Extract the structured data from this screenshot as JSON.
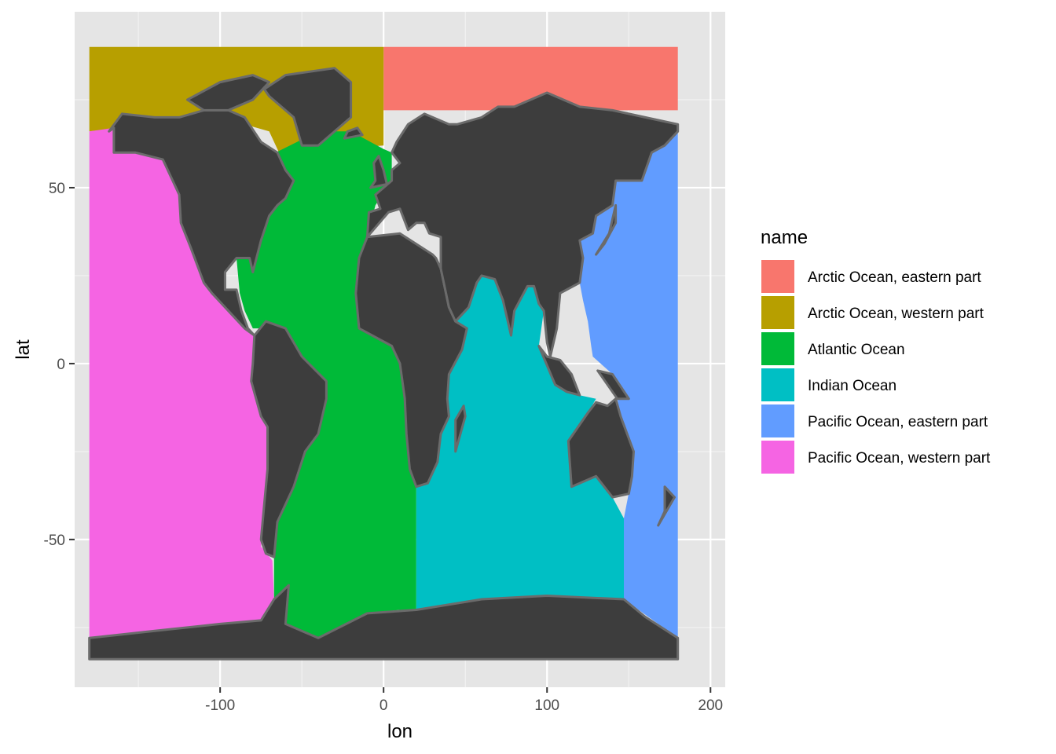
{
  "chart_data": {
    "type": "map",
    "title": "",
    "xlabel": "lon",
    "ylabel": "lat",
    "xlim": [
      -189,
      209
    ],
    "ylim": [
      -92,
      100
    ],
    "x_ticks": [
      -100,
      0,
      100,
      200
    ],
    "x_tick_labels": [
      "-100",
      "0",
      "100",
      "200"
    ],
    "y_ticks": [
      -50,
      0,
      50
    ],
    "y_tick_labels": [
      "-50",
      "0",
      "50"
    ],
    "x_minor_ticks": [
      -150,
      -50,
      50,
      150
    ],
    "y_minor_ticks": [
      -75,
      -25,
      25,
      75
    ],
    "grid": true,
    "panel_background": "#e5e5e5",
    "land_color": "#3d3d3d",
    "border_color": "#6b6b6b",
    "legend": {
      "title": "name",
      "position": "right",
      "entries": [
        {
          "label": "Arctic Ocean, eastern part",
          "color": "#f8766d"
        },
        {
          "label": "Arctic Ocean, western part",
          "color": "#b79f00"
        },
        {
          "label": "Atlantic Ocean",
          "color": "#00ba38"
        },
        {
          "label": "Indian Ocean",
          "color": "#00bfc4"
        },
        {
          "label": "Pacific Ocean, eastern part",
          "color": "#619cff"
        },
        {
          "label": "Pacific Ocean, western part",
          "color": "#f564e3"
        }
      ]
    },
    "regions": [
      {
        "name": "Arctic Ocean, eastern part",
        "color": "#f8766d",
        "polygon": [
          [
            0,
            90
          ],
          [
            180,
            90
          ],
          [
            180,
            72
          ],
          [
            0,
            72
          ]
        ]
      },
      {
        "name": "Arctic Ocean, western part",
        "color": "#b79f00",
        "polygon": [
          [
            -180,
            90
          ],
          [
            0,
            90
          ],
          [
            0,
            62
          ],
          [
            -30,
            61
          ],
          [
            -40,
            60
          ],
          [
            -64,
            60
          ],
          [
            -70,
            66
          ],
          [
            -100,
            70
          ],
          [
            -180,
            66
          ]
        ]
      },
      {
        "name": "Atlantic Ocean",
        "color": "#00ba38",
        "polygon": [
          [
            -66,
            60
          ],
          [
            -40,
            66
          ],
          [
            -20,
            66
          ],
          [
            0,
            61
          ],
          [
            5,
            60
          ],
          [
            5,
            52
          ],
          [
            -5,
            45
          ],
          [
            -10,
            36
          ],
          [
            -15,
            30
          ],
          [
            -17,
            20
          ],
          [
            -15,
            10
          ],
          [
            5,
            5
          ],
          [
            10,
            0
          ],
          [
            13,
            -10
          ],
          [
            14,
            -20
          ],
          [
            16,
            -30
          ],
          [
            20,
            -35
          ],
          [
            20,
            -70
          ],
          [
            10,
            -70
          ],
          [
            -10,
            -71
          ],
          [
            -40,
            -78
          ],
          [
            -60,
            -74
          ],
          [
            -67,
            -67
          ],
          [
            -67,
            -55
          ],
          [
            -65,
            -45
          ],
          [
            -55,
            -35
          ],
          [
            -48,
            -25
          ],
          [
            -40,
            -20
          ],
          [
            -35,
            -10
          ],
          [
            -35,
            -5
          ],
          [
            -50,
            0
          ],
          [
            -60,
            8
          ],
          [
            -70,
            10
          ],
          [
            -80,
            10
          ],
          [
            -85,
            15
          ],
          [
            -88,
            20
          ],
          [
            -90,
            30
          ],
          [
            -82,
            30
          ],
          [
            -80,
            26
          ],
          [
            -75,
            35
          ],
          [
            -70,
            42
          ],
          [
            -65,
            45
          ],
          [
            -60,
            47
          ],
          [
            -55,
            52
          ],
          [
            -60,
            55
          ]
        ]
      },
      {
        "name": "Indian Ocean",
        "color": "#00bfc4",
        "polygon": [
          [
            20,
            -35
          ],
          [
            20,
            -70
          ],
          [
            147,
            -67
          ],
          [
            147,
            -44
          ],
          [
            140,
            -38
          ],
          [
            130,
            -32
          ],
          [
            115,
            -35
          ],
          [
            113,
            -22
          ],
          [
            125,
            -14
          ],
          [
            130,
            -10
          ],
          [
            120,
            -9
          ],
          [
            105,
            -6
          ],
          [
            95,
            5
          ],
          [
            98,
            15
          ],
          [
            95,
            17
          ],
          [
            92,
            22
          ],
          [
            88,
            22
          ],
          [
            80,
            15
          ],
          [
            78,
            8
          ],
          [
            73,
            18
          ],
          [
            68,
            24
          ],
          [
            60,
            25
          ],
          [
            57,
            23
          ],
          [
            52,
            16
          ],
          [
            44,
            12
          ],
          [
            40,
            16
          ],
          [
            35,
            27
          ],
          [
            42,
            12
          ],
          [
            45,
            10
          ],
          [
            51,
            10
          ],
          [
            48,
            4
          ],
          [
            40,
            -3
          ],
          [
            39,
            -10
          ],
          [
            40,
            -15
          ],
          [
            35,
            -20
          ],
          [
            33,
            -28
          ],
          [
            27,
            -34
          ]
        ]
      },
      {
        "name": "Pacific Ocean, eastern part",
        "color": "#619cff",
        "polygon": [
          [
            180,
            66
          ],
          [
            180,
            -78
          ],
          [
            147,
            -67
          ],
          [
            147,
            -44
          ],
          [
            152,
            -32
          ],
          [
            153,
            -25
          ],
          [
            145,
            -15
          ],
          [
            143,
            -10
          ],
          [
            150,
            -10
          ],
          [
            140,
            -3
          ],
          [
            128,
            2
          ],
          [
            127,
            5
          ],
          [
            125,
            12
          ],
          [
            122,
            18
          ],
          [
            120,
            23
          ],
          [
            122,
            30
          ],
          [
            120,
            35
          ],
          [
            128,
            37
          ],
          [
            130,
            42
          ],
          [
            140,
            45
          ],
          [
            142,
            52
          ],
          [
            158,
            52
          ],
          [
            164,
            60
          ],
          [
            172,
            62
          ]
        ]
      },
      {
        "name": "Pacific Ocean, western part",
        "color": "#f564e3",
        "polygon": [
          [
            -180,
            66
          ],
          [
            -165,
            67
          ],
          [
            -165,
            60
          ],
          [
            -152,
            60
          ],
          [
            -135,
            58
          ],
          [
            -125,
            48
          ],
          [
            -124,
            40
          ],
          [
            -118,
            33
          ],
          [
            -110,
            23
          ],
          [
            -105,
            20
          ],
          [
            -95,
            15
          ],
          [
            -85,
            10
          ],
          [
            -79,
            8
          ],
          [
            -80,
            0
          ],
          [
            -81,
            -5
          ],
          [
            -75,
            -15
          ],
          [
            -71,
            -18
          ],
          [
            -71,
            -30
          ],
          [
            -73,
            -45
          ],
          [
            -75,
            -52
          ],
          [
            -68,
            -56
          ],
          [
            -67,
            -67
          ],
          [
            -60,
            -74
          ],
          [
            -180,
            -78
          ]
        ]
      }
    ]
  }
}
